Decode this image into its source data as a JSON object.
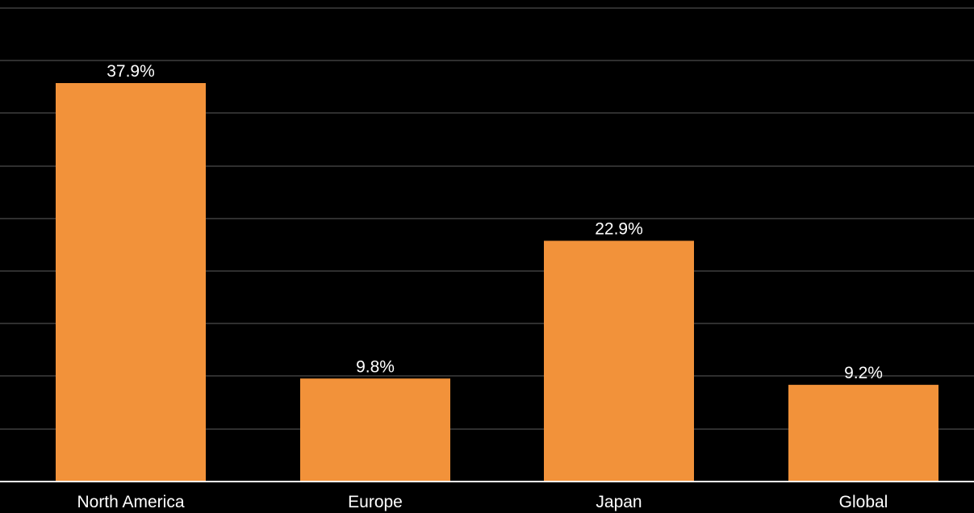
{
  "chart_data": {
    "type": "bar",
    "title": "",
    "xlabel": "",
    "ylabel": "",
    "categories": [
      "North America",
      "Europe",
      "Japan",
      "Global"
    ],
    "values": [
      37.9,
      9.8,
      22.9,
      9.2
    ],
    "value_labels": [
      "37.9%",
      "9.8%",
      "22.9%",
      "9.2%"
    ],
    "ylim": [
      0,
      45
    ],
    "grid": true,
    "legend": "none",
    "colors": {
      "background": "#000000",
      "bar": "#F2923A",
      "grid": "#2F2F2F",
      "text": "#FFFFFF",
      "axis": "#FFFFFF"
    }
  }
}
